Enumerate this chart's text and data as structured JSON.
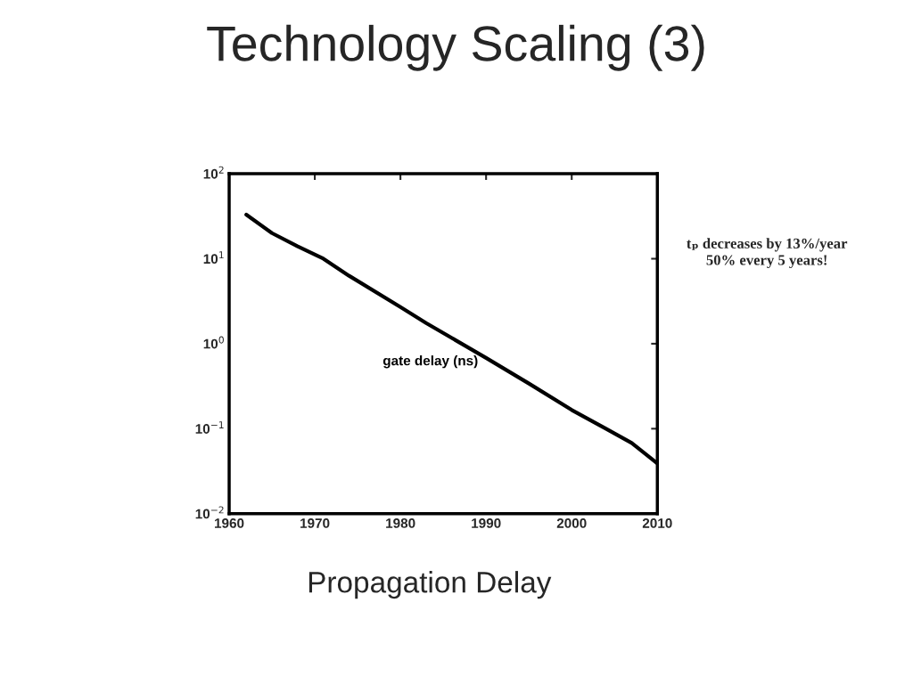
{
  "chart_data": {
    "type": "line",
    "title": "Technology Scaling (3)",
    "annotations": [
      "tₚ decreases by 13%/year\n50% every 5 years!",
      "Propagation Delay"
    ],
    "x": [
      1962,
      1965,
      1968,
      1971,
      1974,
      1980,
      1983,
      1990,
      1995,
      2000,
      2004,
      2007,
      2010
    ],
    "series": [
      {
        "name": "gate delay (ns)",
        "color": "#000000",
        "values": [
          33,
          20,
          14,
          10,
          6.3,
          2.7,
          1.75,
          0.68,
          0.34,
          0.166,
          0.1,
          0.068,
          0.039
        ]
      }
    ],
    "log": "y",
    "xlim": [
      1960,
      2010
    ],
    "xticks": [
      1960,
      1970,
      1980,
      1990,
      2000,
      2010
    ],
    "ylim": [
      0.01,
      100
    ],
    "yticks": [
      {
        "value": 0.01,
        "label": "10$^{−2}$"
      },
      {
        "value": 0.1,
        "label": "10$^{−1}$"
      },
      {
        "value": 1,
        "label": "10$^{0}$"
      },
      {
        "value": 10,
        "label": "10$^{1}$"
      },
      {
        "value": 100,
        "label": "10$^{2}$"
      }
    ],
    "grid": false,
    "legend": false,
    "marker": "none",
    "line_style": "solid"
  }
}
